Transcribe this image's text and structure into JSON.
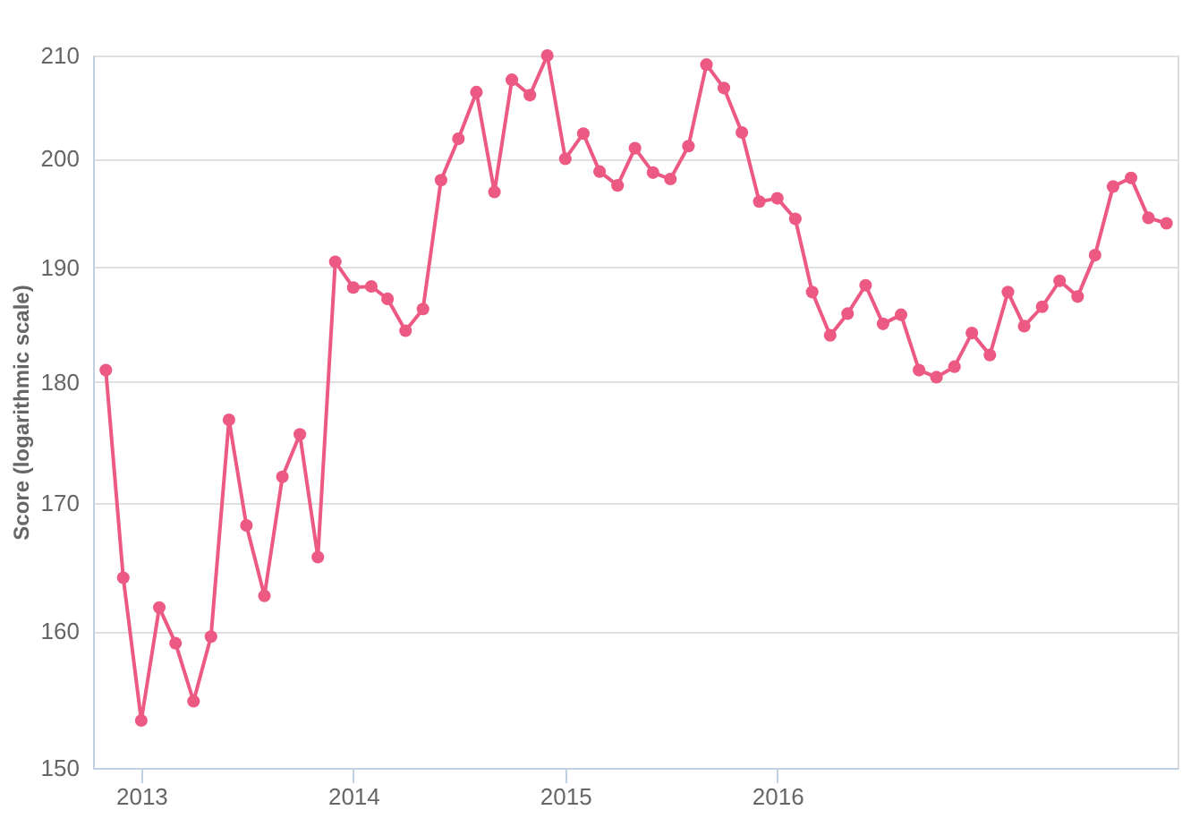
{
  "chart_data": {
    "type": "line",
    "ylabel": "Score (logarithmic scale)",
    "x": [
      "2012-11",
      "2012-12",
      "2013-01",
      "2013-02",
      "2013-03",
      "2013-04",
      "2013-05",
      "2013-06",
      "2013-07",
      "2013-08",
      "2013-09",
      "2013-10",
      "2013-11",
      "2013-12",
      "2014-01",
      "2014-02",
      "2014-03",
      "2014-04",
      "2014-05",
      "2014-06",
      "2014-07",
      "2014-08",
      "2014-09",
      "2014-10",
      "2014-11",
      "2014-12",
      "2015-01",
      "2015-02",
      "2015-03",
      "2015-04",
      "2015-05",
      "2015-06",
      "2015-07",
      "2015-08",
      "2015-09",
      "2015-10",
      "2015-11",
      "2015-12",
      "2016-01",
      "2016-02",
      "2016-03",
      "2016-04",
      "2016-05",
      "2016-06",
      "2016-07",
      "2016-08",
      "2016-09",
      "2016-10",
      "2016-11",
      "2016-12",
      "2017-01",
      "2017-02",
      "2017-03",
      "2017-04",
      "2017-05",
      "2017-06",
      "2017-07",
      "2017-08",
      "2017-09",
      "2017-10",
      "2017-11"
    ],
    "series": [
      {
        "color": "#ec5a84",
        "values": [
          181,
          164.1,
          153.4,
          161.8,
          159.1,
          154.8,
          159.6,
          176.8,
          168.2,
          162.7,
          172.1,
          175.6,
          165.7,
          190.5,
          188.2,
          188.3,
          187.2,
          184.4,
          186.3,
          198,
          201.9,
          206.4,
          196.9,
          207.6,
          206.1,
          210,
          200,
          202.4,
          198.8,
          197.5,
          201,
          198.7,
          198.1,
          201.2,
          209.1,
          206.8,
          202.5,
          196,
          196.3,
          194.4,
          187.8,
          184,
          185.9,
          188.4,
          185,
          185.8,
          181,
          180.4,
          181.3,
          184.2,
          182.3,
          187.8,
          184.8,
          186.5,
          188.8,
          187.4,
          191.1,
          197.4,
          198.2,
          194.5,
          194
        ]
      }
    ],
    "xlim": [
      "2012-10-10",
      "2017-11-20"
    ],
    "xticks": [
      "2013",
      "2014",
      "2015",
      "2016"
    ],
    "ylim": [
      150,
      210
    ],
    "yticks": [
      150,
      160,
      170,
      180,
      190,
      200,
      210
    ],
    "log": "y",
    "grid": "y",
    "marker": "circle",
    "line_style": "solid",
    "legend": false
  }
}
